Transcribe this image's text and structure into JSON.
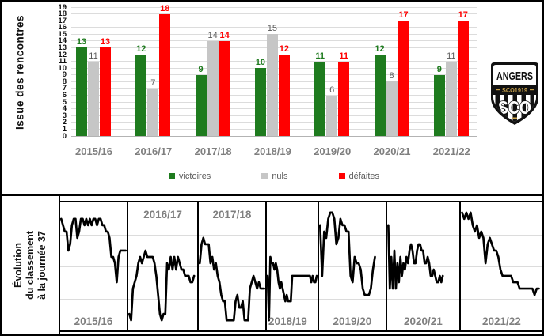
{
  "top_chart": {
    "y_axis_label": "Issue des rencontres",
    "legend": [
      {
        "label": "victoires",
        "color": "#1e7b1e"
      },
      {
        "label": "nuls",
        "color": "#c6c6c6"
      },
      {
        "label": "défaites",
        "color": "#ff0000"
      }
    ]
  },
  "bottom_chart": {
    "label_line1": "Évolution",
    "label_line2": "du classement",
    "label_line3": "à la journée 37"
  },
  "logo": {
    "team": "ANGERS",
    "club_line": "SCO1919",
    "monogram": "SCO",
    "gold": "#c9a24b"
  },
  "chart_data": [
    {
      "type": "bar",
      "title": "Issue des rencontres",
      "categories": [
        "2015/16",
        "2016/17",
        "2017/18",
        "2018/19",
        "2019/20",
        "2020/21",
        "2021/22"
      ],
      "series": [
        {
          "name": "victoires",
          "color": "#1e7b1e",
          "label_color": "#1e7b1e",
          "label_bold": true,
          "values": [
            13,
            12,
            9,
            10,
            11,
            12,
            9
          ]
        },
        {
          "name": "nuls",
          "color": "#c6c6c6",
          "label_color": "#595959",
          "label_bold": false,
          "values": [
            11,
            7,
            14,
            15,
            6,
            8,
            11
          ]
        },
        {
          "name": "défaites",
          "color": "#ff0000",
          "label_color": "#ff0000",
          "label_bold": true,
          "values": [
            13,
            18,
            14,
            12,
            11,
            17,
            17
          ]
        }
      ],
      "xlabel": "",
      "ylabel": "Issue des rencontres",
      "ylim": [
        0,
        19
      ],
      "ytick_step": 1,
      "grid": true,
      "legend_position": "bottom"
    },
    {
      "type": "line",
      "title": "Évolution du classement à la journée 37",
      "y_inverted": true,
      "ylim": [
        1,
        20
      ],
      "line_color": "#000000",
      "grid": true,
      "seasons": [
        {
          "label": "2015/16",
          "label_pos": "bottom-center",
          "span": 1,
          "ranks": [
            3,
            4,
            5,
            5,
            8,
            7,
            4,
            3,
            3,
            6,
            5,
            3,
            3,
            4,
            3,
            4,
            3,
            4,
            3,
            3,
            4,
            3,
            3,
            4,
            4,
            5,
            5,
            6,
            9,
            9,
            10,
            13,
            9,
            8,
            8,
            8,
            8
          ]
        },
        {
          "label": "2016/17",
          "label_pos": "top-center",
          "span": 0.97,
          "ranks": [
            18,
            19,
            14,
            13,
            12,
            10,
            9,
            10,
            9,
            8,
            9,
            9,
            9,
            9,
            10,
            12,
            15,
            18,
            19,
            18,
            18,
            10,
            11,
            9,
            11,
            9,
            11,
            9,
            10,
            11,
            11,
            12,
            12,
            12,
            13,
            13,
            12
          ]
        },
        {
          "label": "2017/18",
          "label_pos": "top-center",
          "span": 1,
          "ranks": [
            10,
            7,
            6,
            7,
            7,
            7,
            10,
            9,
            11,
            10,
            12,
            13,
            15,
            16,
            16,
            19,
            19,
            19,
            19,
            19,
            16,
            15,
            17,
            17,
            16,
            19,
            19,
            19,
            14,
            13,
            12,
            13,
            14,
            13,
            14,
            14,
            14
          ]
        },
        {
          "label": "2018/19",
          "label_pos": "bottom-left",
          "span": 1,
          "ranks": [
            12,
            19,
            9,
            10,
            10,
            11,
            10,
            11,
            13,
            14,
            13,
            14,
            15,
            16,
            15,
            16,
            16,
            16,
            12,
            12,
            12,
            12,
            12,
            12,
            12,
            12,
            12,
            12,
            12,
            12,
            12,
            12,
            13,
            12,
            13,
            13,
            12
          ]
        },
        {
          "label": "2019/20",
          "label_pos": "bottom-center",
          "span": 0.85,
          "ranks": [
            4,
            12,
            5,
            6,
            3,
            2,
            2,
            3,
            7,
            6,
            3,
            4,
            4,
            5,
            5,
            12,
            13,
            9,
            10,
            10,
            11,
            14,
            15,
            15,
            15,
            14,
            11,
            9
          ]
        },
        {
          "label": "2020/21",
          "label_pos": "bottom-center",
          "span": 0.78,
          "ranks": [
            4,
            14,
            9,
            14,
            8,
            14,
            10,
            13,
            9,
            12,
            10,
            11,
            9,
            10,
            8,
            7,
            8,
            10,
            10,
            8,
            7,
            7,
            8,
            8,
            10,
            10,
            9,
            10,
            12,
            12,
            11,
            12,
            13,
            13,
            12,
            13,
            12
          ]
        },
        {
          "label": "2021/22",
          "label_pos": "bottom-center",
          "span": 0.97,
          "ranks": [
            2,
            3,
            2,
            3,
            2,
            4,
            5,
            4,
            6,
            5,
            6,
            10,
            7,
            6,
            7,
            8,
            8,
            9,
            11,
            12,
            12,
            12,
            12,
            12,
            13,
            13,
            13,
            14,
            14,
            14,
            14,
            14,
            14,
            14,
            15,
            14,
            14
          ]
        }
      ]
    }
  ]
}
